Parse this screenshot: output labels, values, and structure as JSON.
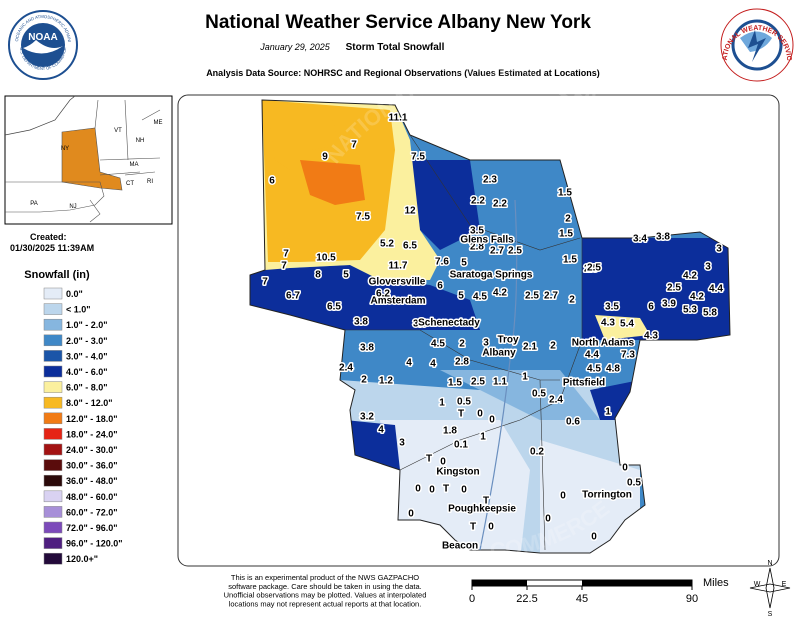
{
  "header": {
    "title": "National Weather Service Albany New York",
    "date": "January 29, 2025",
    "subtitle": "Storm Total Snowfall",
    "source": "Analysis Data Source: NOHRSC and Regional Observations (Values Estimated at Locations)"
  },
  "logos": {
    "noaa": "NOAA",
    "noaa_ring_top": "NATIONAL OCEANIC AND ATMOSPHERIC ADMINISTRATION",
    "noaa_ring_bottom": "U.S. DEPARTMENT OF COMMERCE",
    "nws_ring": "NATIONAL WEATHER SERVICE"
  },
  "inset": {
    "labels": [
      "VT",
      "NH",
      "ME",
      "NY",
      "MA",
      "CT",
      "RI",
      "PA",
      "NJ"
    ]
  },
  "created": {
    "label": "Created:",
    "timestamp": "01/30/2025 11:39AM"
  },
  "legend": {
    "title": "Snowfall (in)",
    "items": [
      {
        "label": "0.0\"",
        "color": "#e4ecf7"
      },
      {
        "label": "< 1.0\"",
        "color": "#bcd6ec"
      },
      {
        "label": "1.0\" - 2.0\"",
        "color": "#86b6df"
      },
      {
        "label": "2.0\" - 3.0\"",
        "color": "#3f88c7"
      },
      {
        "label": "3.0\" - 4.0\"",
        "color": "#1b55a8"
      },
      {
        "label": "4.0\" - 6.0\"",
        "color": "#0c2e9b"
      },
      {
        "label": "6.0\" - 8.0\"",
        "color": "#fbf09e"
      },
      {
        "label": "8.0\" - 12.0\"",
        "color": "#f7b922"
      },
      {
        "label": "12.0\" - 18.0\"",
        "color": "#f17b15"
      },
      {
        "label": "18.0\" - 24.0\"",
        "color": "#e52415"
      },
      {
        "label": "24.0\" - 30.0\"",
        "color": "#a31212"
      },
      {
        "label": "30.0\" - 36.0\"",
        "color": "#5a0c0c"
      },
      {
        "label": "36.0\" - 48.0\"",
        "color": "#2b0a0a"
      },
      {
        "label": "48.0\" - 60.0\"",
        "color": "#d9d2f2"
      },
      {
        "label": "60.0\" - 72.0\"",
        "color": "#a78fd8"
      },
      {
        "label": "72.0\" - 96.0\"",
        "color": "#7c4aba"
      },
      {
        "label": "96.0\" - 120.0\"",
        "color": "#4f1f80"
      },
      {
        "label": "120.0+\"",
        "color": "#230a3a"
      }
    ]
  },
  "map": {
    "watermark_top": "NATIONAL WEATHER SERVICE",
    "watermark_bottom": "U.S. DEPARTMENT OF COMMERCE",
    "cities": [
      "Glens Falls",
      "Saratoga Springs",
      "Gloversville",
      "Amsterdam",
      "Schenectady",
      "Troy",
      "Albany",
      "North Adams",
      "Pittsfield",
      "Kingston",
      "Poughkeepsie",
      "Beacon",
      "Torrington"
    ],
    "snowfall": [
      "11.1",
      "7",
      "9",
      "6",
      "7.5",
      "7.5",
      "12",
      "5.2",
      "6.5",
      "10.5",
      "7",
      "7",
      "8",
      "5",
      "7",
      "6.7",
      "6.5",
      "11.7",
      "6.2",
      "7.6",
      "3.5",
      "2.8",
      "2.7",
      "2.5",
      "2.2",
      "2.2",
      "2.3",
      "1.5",
      "2",
      "1.5",
      "1.5",
      "2.5",
      "5",
      "6",
      "5",
      "4.5",
      "4.2",
      "2.5",
      "2.7",
      "2",
      "3.8",
      "3.9",
      "4.5",
      "2",
      "3",
      "2.1",
      "2",
      "3.8",
      "4",
      "4",
      "2.8",
      "2.4",
      "2",
      "1.2",
      "1.5",
      "2.5",
      "1.1",
      "1",
      "1",
      "0.5",
      "3.2",
      "4",
      "1.8",
      "T",
      "0",
      "0",
      "0.1",
      "1",
      "3",
      "0.5",
      "2.4",
      "0.6",
      "1",
      "0.2",
      "T",
      "0",
      "0",
      "0",
      "T",
      "0",
      "T",
      "0",
      "T",
      "0",
      "0",
      "0",
      "0",
      "0.5",
      "0",
      "3.4",
      "3.8",
      "3",
      "2.5",
      "4.2",
      "3",
      "4.4",
      "2.5",
      "4.2",
      "3.5",
      "6",
      "3.9",
      "5.3",
      "5.8",
      "4.3",
      "5.4",
      "4.3",
      "4.4",
      "4.5",
      "4.8",
      "7.3"
    ]
  },
  "scale_bar": {
    "unit": "Miles",
    "ticks": [
      0,
      22.5,
      45,
      90
    ]
  },
  "compass": [
    "N",
    "E",
    "S",
    "W"
  ],
  "footer": {
    "lines": [
      "This is an experimental product of the NWS GAZPACHO",
      "software package. Care should be taken in using the data.",
      "Unofficial observations may be plotted. Values at interpolated",
      "locations may not represent actual reports at that location."
    ]
  }
}
